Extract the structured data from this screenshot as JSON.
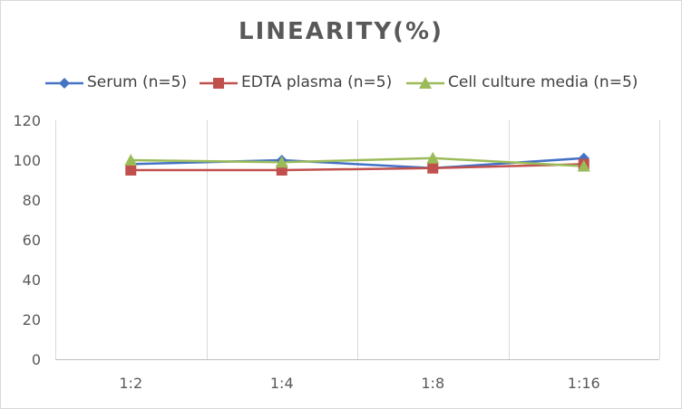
{
  "chart_data": {
    "type": "line",
    "title": "LINEARITY(%)",
    "categories": [
      "1:2",
      "1:4",
      "1:8",
      "1:16"
    ],
    "series": [
      {
        "name": "Serum (n=5)",
        "values": [
          98,
          100,
          96,
          101
        ],
        "color": "#4472c4",
        "marker": "diamond"
      },
      {
        "name": "EDTA plasma (n=5)",
        "values": [
          95,
          95,
          96,
          98
        ],
        "color": "#c0504d",
        "marker": "square"
      },
      {
        "name": "Cell culture media (n=5)",
        "values": [
          100,
          99,
          101,
          97
        ],
        "color": "#9bbb59",
        "marker": "triangle"
      }
    ],
    "yticks": [
      0,
      20,
      40,
      60,
      80,
      100,
      120
    ],
    "ylim": [
      0,
      120
    ],
    "grid": "vertical",
    "legend_position": "top"
  }
}
